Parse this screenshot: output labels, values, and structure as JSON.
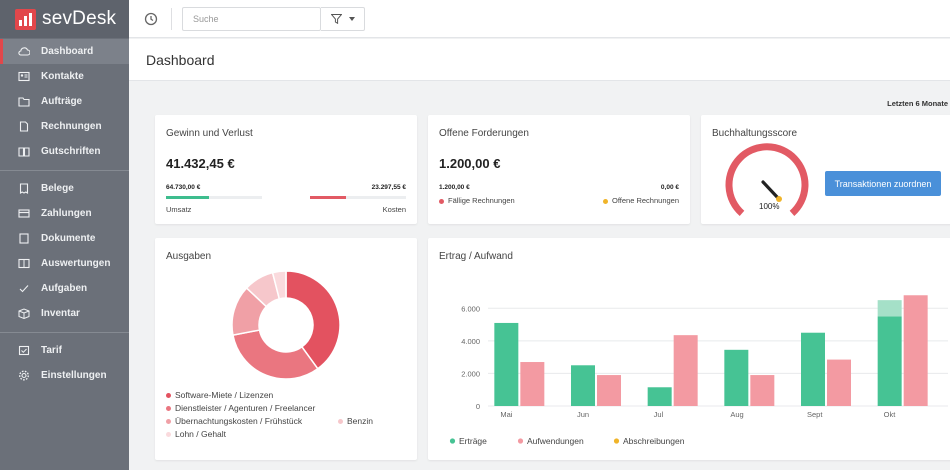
{
  "brand": {
    "name": "sevDesk",
    "color": "#e2474b"
  },
  "sidebar": {
    "groups": [
      [
        {
          "label": "Dashboard",
          "icon": "cloud-icon",
          "active": true
        },
        {
          "label": "Kontakte",
          "icon": "contacts-icon"
        },
        {
          "label": "Aufträge",
          "icon": "folder-icon"
        },
        {
          "label": "Rechnungen",
          "icon": "document-icon"
        },
        {
          "label": "Gutschriften",
          "icon": "book-icon"
        }
      ],
      [
        {
          "label": "Belege",
          "icon": "receipt-icon"
        },
        {
          "label": "Zahlungen",
          "icon": "card-icon"
        },
        {
          "label": "Dokumente",
          "icon": "file-icon"
        },
        {
          "label": "Auswertungen",
          "icon": "report-icon"
        },
        {
          "label": "Aufgaben",
          "icon": "check-icon"
        },
        {
          "label": "Inventar",
          "icon": "box-icon"
        }
      ],
      [
        {
          "label": "Tarif",
          "icon": "tarif-icon"
        },
        {
          "label": "Einstellungen",
          "icon": "gear-icon"
        }
      ]
    ]
  },
  "topbar": {
    "search_placeholder": "Suche",
    "filter_icon": "filter-icon",
    "history_icon": "clock-icon"
  },
  "page": {
    "title": "Dashboard",
    "period": "Letzten 6 Monate"
  },
  "profit_loss": {
    "title": "Gewinn und Verlust",
    "total": "41.432,45 €",
    "revenue_value": "64.730,00 €",
    "revenue_label": "Umsatz",
    "revenue_fill": 0.45,
    "cost_value": "23.297,55 €",
    "cost_label": "Kosten",
    "cost_fill": 0.37,
    "revenue_color": "#3ebd8e",
    "cost_color": "#e25a64"
  },
  "receivables": {
    "title": "Offene Forderungen",
    "total": "1.200,00 €",
    "due_value": "1.200,00 €",
    "open_value": "0,00 €",
    "due_label": "Fällige Rechnungen",
    "open_label": "Offene Rechnungen",
    "due_color": "#e25a64",
    "open_color": "#f0b429"
  },
  "score": {
    "title": "Buchhaltungsscore",
    "value_label": "100%",
    "value": 1.0,
    "button_label": "Transaktionen zuordnen"
  },
  "expenses": {
    "title": "Ausgaben",
    "legend": [
      {
        "label": "Software-Miete / Lizenzen",
        "color": "#e35260"
      },
      {
        "label": "Dienstleister / Agenturen / Freelancer",
        "color": "#ea7680"
      },
      {
        "label": "Übernachtungskosten / Frühstück",
        "color": "#f0a0a6"
      },
      {
        "label": "Benzin",
        "color": "#f6c7cb"
      },
      {
        "label": "Lohn / Gehalt",
        "color": "#fadadd"
      }
    ]
  },
  "chart_data": {
    "type": "bar",
    "title": "Ertrag / Aufwand",
    "categories": [
      "Mai",
      "Jun",
      "Jul",
      "Aug",
      "Sept",
      "Okt"
    ],
    "series": [
      {
        "name": "Erträge",
        "color": "#46c394",
        "values": [
          5100,
          2500,
          1150,
          3450,
          4500,
          5500
        ]
      },
      {
        "name": "Aufwendungen",
        "color": "#f39aa2",
        "values": [
          2700,
          1900,
          4350,
          1900,
          2850,
          6800
        ]
      },
      {
        "name": "Abschreibungen",
        "color": "#f0b429",
        "values": [
          0,
          0,
          0,
          0,
          0,
          0
        ]
      }
    ],
    "stack_top": {
      "category": "Okt",
      "series": "Erträge",
      "value": 1000,
      "color": "#a5e0c8"
    },
    "y_ticks": [
      "0",
      "2.000",
      "4.000",
      "6.000"
    ],
    "ylim": [
      0,
      7000
    ],
    "legend_position": "bottom"
  },
  "expenses_chart": {
    "type": "pie",
    "labels": [
      "Software-Miete / Lizenzen",
      "Dienstleister / Agenturen / Freelancer",
      "Übernachtungskosten / Frühstück",
      "Benzin",
      "Lohn / Gehalt"
    ],
    "values": [
      40,
      32,
      15,
      9,
      4
    ]
  }
}
